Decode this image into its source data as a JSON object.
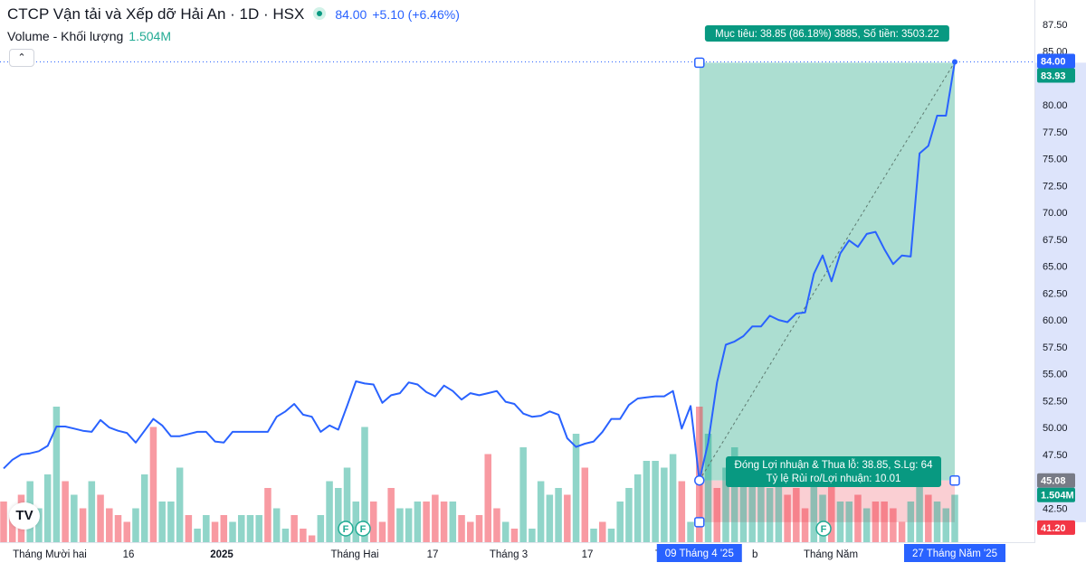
{
  "header": {
    "title": "CTCP Vận tải và Xếp dỡ Hải An · 1D · HSX",
    "price": "84.00",
    "change": "+5.10 (+6.46%)"
  },
  "volume_legend": {
    "label": "Volume - Khối lượng",
    "value": "1.504M"
  },
  "collapse_icon": "chevron-up-icon",
  "logo_text": "TV",
  "position_tool": {
    "target_label": "Mục tiêu: 38.85 (86.18%) 3885, Số tiền: 3503.22",
    "pnl_line1": "Đóng Lợi nhuận & Thua lỗ: 38.85, S.Lg: 64",
    "pnl_line2": "Tỷ lệ Rủi ro/Lợi nhuận: 10.01",
    "entry": 45.08,
    "target": 83.93,
    "stop": 41.2,
    "start_date_label": "09 Tháng 4 '25",
    "end_date_label": "27 Tháng Năm '25"
  },
  "price_axis": {
    "ticks": [
      "87.50",
      "85.00",
      "82.50",
      "80.00",
      "77.50",
      "75.00",
      "72.50",
      "70.00",
      "67.50",
      "65.00",
      "62.50",
      "60.00",
      "57.50",
      "55.00",
      "52.50",
      "50.00",
      "47.50",
      "42.50"
    ],
    "badges": {
      "last": "84.00",
      "target": "83.93",
      "entry": "45.08",
      "volume": "1.504M",
      "stop": "41.20"
    }
  },
  "time_axis": {
    "labels": [
      "Tháng Mười hai",
      "16",
      "2025",
      "Tháng Hai",
      "17",
      "Tháng 3",
      "17",
      "Tháng Năm"
    ],
    "hidden_left": "Tha",
    "hidden_right": "b"
  },
  "events": [
    "F",
    "F",
    "F"
  ],
  "colors": {
    "line": "#2962ff",
    "up": "#22ab94",
    "down": "#f23645",
    "profit_zone": "#9ed8c9",
    "loss_zone": "#f9c7cb",
    "badge_blue": "#2962ff",
    "badge_green": "#089981",
    "badge_red": "#f23645"
  },
  "chart_data": {
    "type": "line",
    "y_scale": "price",
    "price_series": [
      46.2,
      47.0,
      47.5,
      47.6,
      47.8,
      48.3,
      50.1,
      50.1,
      49.9,
      49.7,
      49.6,
      50.7,
      50.0,
      49.7,
      49.5,
      48.6,
      49.7,
      50.8,
      50.2,
      49.2,
      49.2,
      49.4,
      49.6,
      49.6,
      48.7,
      48.6,
      49.6,
      49.6,
      49.6,
      49.6,
      49.6,
      51.0,
      51.5,
      52.2,
      51.2,
      51.0,
      49.6,
      50.2,
      49.8,
      52.0,
      54.3,
      54.1,
      54.0,
      52.3,
      53.0,
      53.2,
      54.2,
      54.0,
      53.3,
      52.9,
      53.9,
      53.4,
      52.6,
      53.2,
      53.0,
      53.2,
      53.4,
      52.4,
      52.2,
      51.3,
      51.0,
      51.1,
      51.5,
      51.2,
      49.0,
      48.2,
      48.5,
      48.7,
      49.6,
      50.8,
      50.8,
      52.1,
      52.7,
      52.8,
      52.9,
      52.9,
      53.4,
      49.9,
      52.0,
      45.08,
      48.6,
      54.2,
      57.7,
      58.0,
      58.5,
      59.4,
      59.4,
      60.4,
      60.0,
      59.8,
      60.6,
      60.7,
      64.3,
      66.0,
      63.6,
      66.2,
      67.4,
      66.8,
      68.0,
      68.2,
      66.6,
      65.2,
      66.0,
      65.9,
      75.5,
      76.2,
      79.0,
      79.0,
      84.0
    ],
    "volume_series": [
      [
        0.3,
        0
      ],
      [
        0.2,
        0
      ],
      [
        0.35,
        0
      ],
      [
        0.45,
        1
      ],
      [
        0.25,
        1
      ],
      [
        0.5,
        1
      ],
      [
        1.0,
        1
      ],
      [
        0.45,
        0
      ],
      [
        0.35,
        1
      ],
      [
        0.25,
        0
      ],
      [
        0.45,
        1
      ],
      [
        0.35,
        0
      ],
      [
        0.25,
        0
      ],
      [
        0.2,
        0
      ],
      [
        0.15,
        0
      ],
      [
        0.25,
        1
      ],
      [
        0.5,
        1
      ],
      [
        0.85,
        0
      ],
      [
        0.3,
        1
      ],
      [
        0.3,
        1
      ],
      [
        0.55,
        1
      ],
      [
        0.2,
        0
      ],
      [
        0.1,
        1
      ],
      [
        0.2,
        1
      ],
      [
        0.15,
        0
      ],
      [
        0.2,
        0
      ],
      [
        0.15,
        1
      ],
      [
        0.2,
        1
      ],
      [
        0.2,
        1
      ],
      [
        0.2,
        1
      ],
      [
        0.4,
        0
      ],
      [
        0.25,
        1
      ],
      [
        0.1,
        1
      ],
      [
        0.2,
        0
      ],
      [
        0.1,
        0
      ],
      [
        0.05,
        0
      ],
      [
        0.2,
        1
      ],
      [
        0.45,
        1
      ],
      [
        0.4,
        1
      ],
      [
        0.55,
        1
      ],
      [
        0.3,
        1
      ],
      [
        0.85,
        1
      ],
      [
        0.3,
        0
      ],
      [
        0.15,
        0
      ],
      [
        0.4,
        0
      ],
      [
        0.25,
        1
      ],
      [
        0.25,
        1
      ],
      [
        0.3,
        1
      ],
      [
        0.3,
        0
      ],
      [
        0.35,
        0
      ],
      [
        0.3,
        0
      ],
      [
        0.3,
        1
      ],
      [
        0.2,
        0
      ],
      [
        0.15,
        0
      ],
      [
        0.2,
        0
      ],
      [
        0.65,
        0
      ],
      [
        0.25,
        0
      ],
      [
        0.15,
        1
      ],
      [
        0.1,
        0
      ],
      [
        0.7,
        1
      ],
      [
        0.1,
        1
      ],
      [
        0.45,
        1
      ],
      [
        0.35,
        1
      ],
      [
        0.4,
        1
      ],
      [
        0.35,
        0
      ],
      [
        0.8,
        1
      ],
      [
        0.55,
        0
      ],
      [
        0.1,
        1
      ],
      [
        0.15,
        0
      ],
      [
        0.1,
        1
      ],
      [
        0.3,
        1
      ],
      [
        0.4,
        1
      ],
      [
        0.5,
        1
      ],
      [
        0.6,
        1
      ],
      [
        0.6,
        1
      ],
      [
        0.55,
        1
      ],
      [
        0.65,
        1
      ],
      [
        0.45,
        0
      ],
      [
        0.15,
        1
      ],
      [
        1.0,
        0
      ],
      [
        0.8,
        1
      ],
      [
        0.4,
        0
      ],
      [
        0.55,
        1
      ],
      [
        0.7,
        1
      ],
      [
        0.45,
        1
      ],
      [
        0.45,
        1
      ],
      [
        0.55,
        1
      ],
      [
        0.4,
        1
      ],
      [
        0.55,
        1
      ],
      [
        0.35,
        0
      ],
      [
        0.4,
        0
      ],
      [
        0.25,
        0
      ],
      [
        0.45,
        1
      ],
      [
        0.35,
        1
      ],
      [
        0.55,
        0
      ],
      [
        0.3,
        1
      ],
      [
        0.3,
        1
      ],
      [
        0.35,
        0
      ],
      [
        0.25,
        1
      ],
      [
        0.3,
        0
      ],
      [
        0.3,
        0
      ],
      [
        0.25,
        0
      ],
      [
        0.15,
        0
      ],
      [
        0.3,
        1
      ],
      [
        0.45,
        1
      ],
      [
        0.35,
        0
      ],
      [
        0.3,
        1
      ],
      [
        0.25,
        1
      ],
      [
        0.35,
        1
      ]
    ],
    "ylim": [
      40.6,
      88.5
    ],
    "title": "CTCP Vận tải và Xếp dỡ Hải An · 1D · HSX",
    "xlabel": "",
    "ylabel": ""
  }
}
